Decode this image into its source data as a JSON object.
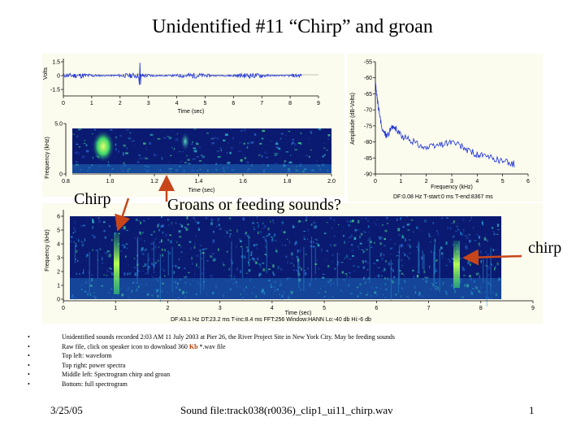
{
  "slide": {
    "title": "Unidentified #11 “Chirp” and groan",
    "callouts": {
      "chirp_left": "Chirp",
      "groans": "Groans or feeding sounds?",
      "chirp_right": "chirp"
    },
    "bullets": [
      "Unidentified sounds recorded 2:03 AM 11 July 2003 at Pier 26, the River Project Site in New York City. May be feeding sounds",
      "Top left: waveform",
      "Top right: power spectra",
      "Middle left: Spectrogram chirp and groan",
      "Bottom: full spectrogram"
    ],
    "raw_file_bullet": {
      "before": "Raw file, click on speaker icon to download 360 ",
      "kb": "Kb",
      "after": " *.wav file"
    },
    "footer": {
      "date": "3/25/05",
      "sound_file": "Sound file:track038(r0036)_clip1_ui11_chirp.wav",
      "page": "1"
    },
    "colors": {
      "panel_bg": "#fbfbee",
      "trace": "#1a2fd6",
      "arrow": "#c8451a",
      "kb_text": "#b83a00"
    }
  },
  "chart_data": [
    {
      "type": "line",
      "name": "waveform",
      "xlabel": "Time (sec)",
      "ylabel": "Volts",
      "xlim": [
        0,
        9
      ],
      "ylim": [
        -1.5,
        1.5
      ],
      "x_ticks": [
        "0",
        "1",
        "2",
        "3",
        "4",
        "5",
        "6",
        "7",
        "8",
        "9"
      ],
      "y_ticks": [
        "1.5",
        "0",
        "-1.5"
      ],
      "data_extent_sec": 8.4,
      "noise_band_volts": [
        -0.3,
        0.3
      ],
      "spike": {
        "x": 2.7,
        "y": [
          -1.0,
          1.4
        ]
      }
    },
    {
      "type": "heatmap",
      "name": "spectrogram_chirp_and_groan",
      "xlabel": "Time (sec)",
      "ylabel": "Frequency (kHz)",
      "xlim": [
        0.8,
        2.0
      ],
      "ylim": [
        0,
        5.0
      ],
      "x_ticks": [
        "0.8",
        "1.0",
        "1.2",
        "1.4",
        "1.6",
        "1.8",
        "2.0"
      ],
      "y_ticks": [
        "5.0",
        "0"
      ],
      "data_start_sec": 0.89
    },
    {
      "type": "line",
      "name": "power_spectrum",
      "xlabel": "Frequency (kHz)",
      "ylabel": "Amplitude (dB-Volts)",
      "xlim": [
        0,
        6
      ],
      "ylim": [
        -90,
        -55
      ],
      "x_ticks": [
        "0",
        "1",
        "2",
        "3",
        "4",
        "5",
        "6"
      ],
      "y_ticks": [
        "-55",
        "-60",
        "-65",
        "-70",
        "-75",
        "-80",
        "-85",
        "-90"
      ],
      "info": [
        "DF:0.08 Hz",
        "T-start:0 ms",
        "T-end:8367 ms"
      ],
      "x": [
        0,
        0.1,
        0.25,
        0.45,
        0.7,
        1.0,
        1.5,
        2.0,
        2.5,
        3.0,
        3.5,
        4.0,
        4.5,
        5.0,
        5.5
      ],
      "y": [
        -62,
        -68,
        -76,
        -78,
        -75,
        -78,
        -80,
        -82,
        -81,
        -80,
        -82,
        -84,
        -85,
        -86,
        -87
      ]
    },
    {
      "type": "heatmap",
      "name": "full_spectrogram",
      "xlabel": "Time (sec)",
      "ylabel": "Frequency (kHz)",
      "xlim": [
        0,
        9
      ],
      "ylim": [
        0,
        6
      ],
      "x_ticks": [
        "0",
        "1",
        "2",
        "3",
        "4",
        "5",
        "6",
        "7",
        "8",
        "9"
      ],
      "y_ticks": [
        "6",
        "5",
        "4",
        "3",
        "2",
        "1",
        "0"
      ],
      "data_extent_sec": 8.4,
      "info": [
        "DF:43.1 Hz",
        "DT:23.2 ms",
        "T-inc:8.4 ms",
        "FFT:256",
        "Window:HANN",
        "Lo:-40 db",
        "Hi:-6 db"
      ]
    }
  ]
}
